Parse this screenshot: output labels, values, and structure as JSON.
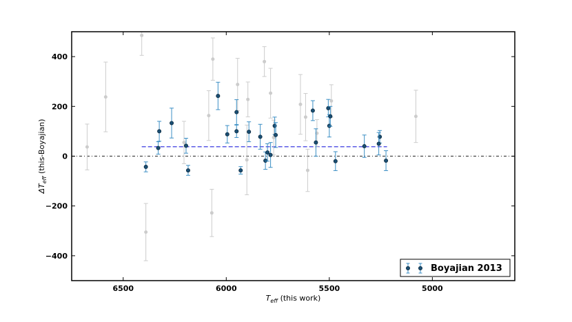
{
  "chart_data": {
    "type": "scatter",
    "xlabel": "T_eff (this work)",
    "ylabel": "ΔT_eff (this-Boyajian)",
    "xlabel_main": "T",
    "xlabel_sub": "eff",
    "xlabel_rest": " (this work)",
    "ylabel_main": "ΔT",
    "ylabel_sub": "eff",
    "ylabel_rest": " (this-Boyajian)",
    "xlim": [
      6750,
      4600
    ],
    "ylim": [
      -500,
      500
    ],
    "x_ticks": [
      6500,
      6000,
      5500,
      5000
    ],
    "x_tick_labels": [
      "6500",
      "6000",
      "5500",
      "5000"
    ],
    "y_ticks": [
      400,
      200,
      0,
      -200,
      -400
    ],
    "y_tick_labels": [
      "400",
      "200",
      "0",
      "−200",
      "−400"
    ],
    "legend": {
      "position": "lower-right",
      "label": "Boyajian 2013"
    },
    "colors": {
      "highlight_marker": "#1a4f74",
      "highlight_errorbar": "#3a8ec4",
      "grey": "#cccccc",
      "mean_line": "#5a5ae6",
      "zero_line": "#444444"
    },
    "mean_line": {
      "y": 38,
      "x_range": [
        6410,
        5220
      ]
    },
    "zero_line": {
      "y": 0
    },
    "series": [
      {
        "name": "Boyajian 2013",
        "points": [
          {
            "x": 6390,
            "y": -43,
            "err": 20
          },
          {
            "x": 6330,
            "y": 33,
            "err": 25
          },
          {
            "x": 6325,
            "y": 100,
            "err": 40
          },
          {
            "x": 6265,
            "y": 133,
            "err": 60
          },
          {
            "x": 6195,
            "y": 42,
            "err": 30
          },
          {
            "x": 6185,
            "y": -57,
            "err": 20
          },
          {
            "x": 6040,
            "y": 242,
            "err": 55
          },
          {
            "x": 5995,
            "y": 88,
            "err": 35
          },
          {
            "x": 5950,
            "y": 177,
            "err": 50
          },
          {
            "x": 5950,
            "y": 100,
            "err": 25
          },
          {
            "x": 5930,
            "y": -57,
            "err": 15
          },
          {
            "x": 5890,
            "y": 98,
            "err": 40
          },
          {
            "x": 5835,
            "y": 78,
            "err": 50
          },
          {
            "x": 5810,
            "y": -18,
            "err": 35
          },
          {
            "x": 5800,
            "y": 15,
            "err": 35
          },
          {
            "x": 5785,
            "y": 5,
            "err": 50
          },
          {
            "x": 5765,
            "y": 122,
            "err": 35
          },
          {
            "x": 5760,
            "y": 85,
            "err": 50
          },
          {
            "x": 5580,
            "y": 183,
            "err": 40
          },
          {
            "x": 5565,
            "y": 55,
            "err": 55
          },
          {
            "x": 5505,
            "y": 193,
            "err": 35
          },
          {
            "x": 5500,
            "y": 122,
            "err": 45
          },
          {
            "x": 5495,
            "y": 160,
            "err": 40
          },
          {
            "x": 5470,
            "y": -20,
            "err": 38
          },
          {
            "x": 5330,
            "y": 40,
            "err": 45
          },
          {
            "x": 5255,
            "y": 78,
            "err": 25
          },
          {
            "x": 5260,
            "y": 50,
            "err": 45
          },
          {
            "x": 5225,
            "y": -18,
            "err": 40
          }
        ]
      },
      {
        "name": "",
        "points": [
          {
            "x": 6675,
            "y": 37,
            "err": 92
          },
          {
            "x": 6585,
            "y": 238,
            "err": 140
          },
          {
            "x": 6410,
            "y": 485,
            "err": 80
          },
          {
            "x": 6390,
            "y": -305,
            "err": 115
          },
          {
            "x": 6205,
            "y": 55,
            "err": 85
          },
          {
            "x": 6085,
            "y": 163,
            "err": 100
          },
          {
            "x": 6070,
            "y": -228,
            "err": 95
          },
          {
            "x": 6065,
            "y": 390,
            "err": 85
          },
          {
            "x": 5945,
            "y": 288,
            "err": 105
          },
          {
            "x": 5895,
            "y": 228,
            "err": 70
          },
          {
            "x": 5900,
            "y": -15,
            "err": 140
          },
          {
            "x": 5815,
            "y": 380,
            "err": 60
          },
          {
            "x": 5785,
            "y": 253,
            "err": 100
          },
          {
            "x": 5770,
            "y": 75,
            "err": 70
          },
          {
            "x": 5640,
            "y": 208,
            "err": 120
          },
          {
            "x": 5615,
            "y": 157,
            "err": 95
          },
          {
            "x": 5605,
            "y": -57,
            "err": 85
          },
          {
            "x": 5560,
            "y": 92,
            "err": 55
          },
          {
            "x": 5490,
            "y": 222,
            "err": 65
          },
          {
            "x": 5080,
            "y": 160,
            "err": 105
          }
        ]
      }
    ]
  }
}
